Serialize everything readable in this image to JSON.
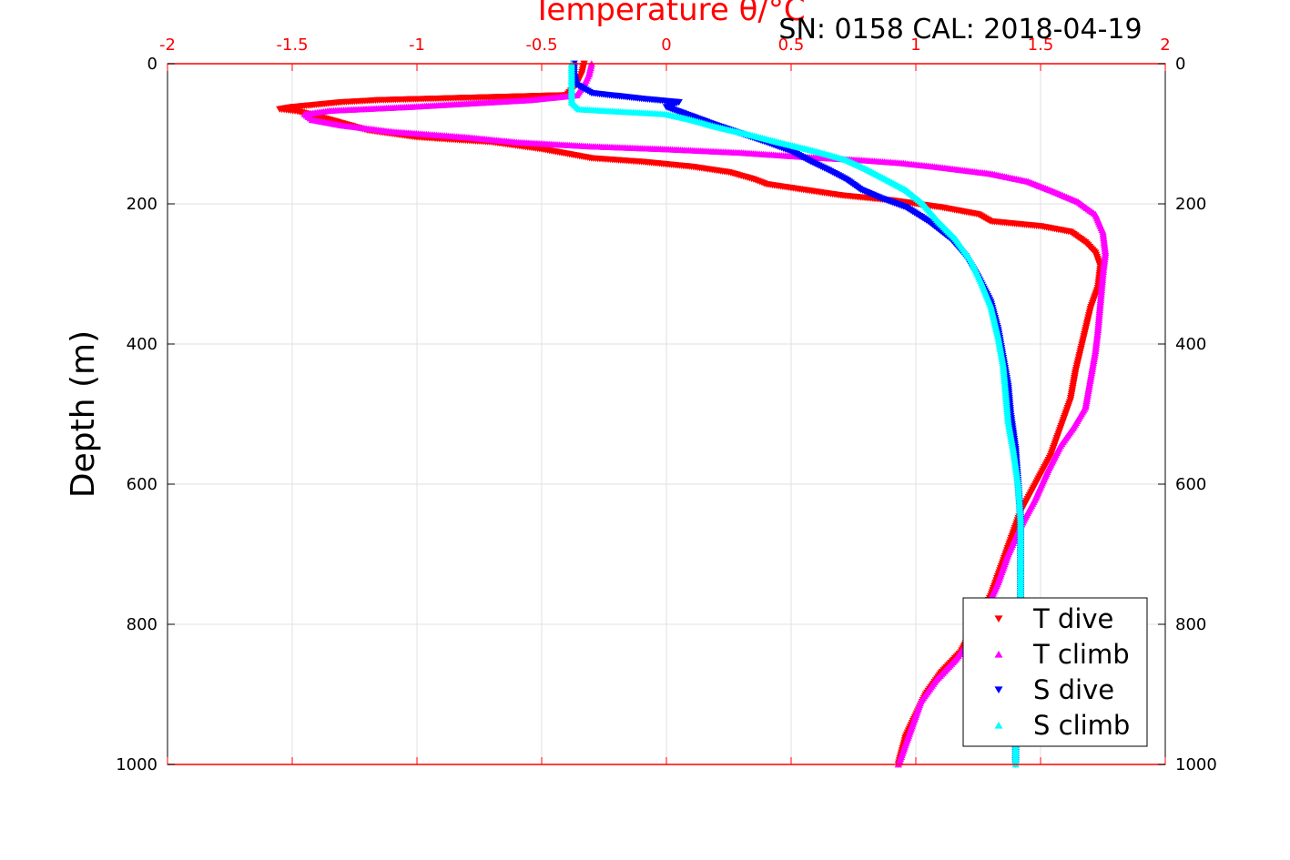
{
  "colors": {
    "t_dive": "#ff0000",
    "t_climb": "#ff00ff",
    "s_dive": "#0000ff",
    "s_climb": "#00ffff",
    "top_axis": "#ff0000",
    "grid": "#e0e0e0"
  },
  "chart_data": {
    "type": "scatter",
    "title": "Temperature θ/°C",
    "subtitle": "SN: 0158  CAL: 2018-04-19",
    "xlabel": "Temperature θ/°C",
    "ylabel": "Depth (m)",
    "xlim": [
      -2,
      2
    ],
    "ylim": [
      0,
      1000
    ],
    "y_reversed": true,
    "grid": true,
    "x_ticks": [
      -2,
      -1.5,
      -1,
      -0.5,
      0,
      0.5,
      1,
      1.5,
      2
    ],
    "x_tick_labels": [
      "-2",
      "-1.5",
      "-1",
      "-0.5",
      "0",
      "0.5",
      "1",
      "1.5",
      "2"
    ],
    "y_ticks": [
      0,
      200,
      400,
      600,
      800,
      1000
    ],
    "y_tick_labels": [
      "0",
      "200",
      "400",
      "600",
      "800",
      "1000"
    ],
    "legend_position": "bottom-right",
    "series": [
      {
        "name": "T dive",
        "marker": "triangle-down",
        "points": [
          [
            -0.33,
            0
          ],
          [
            -0.34,
            15
          ],
          [
            -0.36,
            30
          ],
          [
            -0.4,
            45
          ],
          [
            -1.15,
            52
          ],
          [
            -1.3,
            55
          ],
          [
            -1.5,
            62
          ],
          [
            -1.55,
            65
          ],
          [
            -1.48,
            68
          ],
          [
            -1.4,
            75
          ],
          [
            -1.3,
            85
          ],
          [
            -1.2,
            95
          ],
          [
            -1.0,
            105
          ],
          [
            -0.7,
            112
          ],
          [
            -0.5,
            122
          ],
          [
            -0.3,
            135
          ],
          [
            -0.1,
            140
          ],
          [
            0.1,
            147
          ],
          [
            0.25,
            155
          ],
          [
            0.35,
            165
          ],
          [
            0.4,
            172
          ],
          [
            0.55,
            180
          ],
          [
            0.7,
            188
          ],
          [
            0.9,
            195
          ],
          [
            1.1,
            205
          ],
          [
            1.25,
            215
          ],
          [
            1.3,
            225
          ],
          [
            1.5,
            232
          ],
          [
            1.62,
            240
          ],
          [
            1.68,
            255
          ],
          [
            1.72,
            270
          ],
          [
            1.74,
            290
          ],
          [
            1.73,
            320
          ],
          [
            1.7,
            350
          ],
          [
            1.68,
            380
          ],
          [
            1.66,
            410
          ],
          [
            1.64,
            440
          ],
          [
            1.62,
            480
          ],
          [
            1.58,
            520
          ],
          [
            1.54,
            560
          ],
          [
            1.48,
            600
          ],
          [
            1.42,
            640
          ],
          [
            1.38,
            680
          ],
          [
            1.34,
            720
          ],
          [
            1.3,
            760
          ],
          [
            1.24,
            800
          ],
          [
            1.18,
            840
          ],
          [
            1.1,
            870
          ],
          [
            1.04,
            900
          ],
          [
            1.0,
            930
          ],
          [
            0.96,
            960
          ],
          [
            0.93,
            1000
          ]
        ]
      },
      {
        "name": "T climb",
        "marker": "triangle-up",
        "points": [
          [
            -0.3,
            0
          ],
          [
            -0.31,
            15
          ],
          [
            -0.33,
            30
          ],
          [
            -0.36,
            45
          ],
          [
            -0.55,
            52
          ],
          [
            -0.8,
            57
          ],
          [
            -1.05,
            62
          ],
          [
            -1.35,
            67
          ],
          [
            -1.45,
            72
          ],
          [
            -1.42,
            80
          ],
          [
            -1.3,
            88
          ],
          [
            -1.1,
            97
          ],
          [
            -0.8,
            105
          ],
          [
            -0.6,
            112
          ],
          [
            -0.3,
            118
          ],
          [
            0.0,
            122
          ],
          [
            0.3,
            127
          ],
          [
            0.55,
            133
          ],
          [
            0.8,
            138
          ],
          [
            0.95,
            142
          ],
          [
            1.1,
            148
          ],
          [
            1.3,
            157
          ],
          [
            1.45,
            168
          ],
          [
            1.55,
            182
          ],
          [
            1.65,
            197
          ],
          [
            1.72,
            215
          ],
          [
            1.75,
            240
          ],
          [
            1.76,
            270
          ],
          [
            1.75,
            300
          ],
          [
            1.74,
            340
          ],
          [
            1.73,
            380
          ],
          [
            1.72,
            410
          ],
          [
            1.7,
            450
          ],
          [
            1.68,
            490
          ],
          [
            1.63,
            520
          ],
          [
            1.58,
            545
          ],
          [
            1.53,
            580
          ],
          [
            1.48,
            620
          ],
          [
            1.42,
            660
          ],
          [
            1.37,
            700
          ],
          [
            1.33,
            740
          ],
          [
            1.28,
            780
          ],
          [
            1.22,
            820
          ],
          [
            1.16,
            850
          ],
          [
            1.08,
            880
          ],
          [
            1.02,
            910
          ],
          [
            0.99,
            940
          ],
          [
            0.96,
            970
          ],
          [
            0.93,
            1000
          ]
        ]
      },
      {
        "name": "S dive",
        "marker": "triangle-down",
        "points": [
          [
            -0.37,
            0
          ],
          [
            -0.37,
            15
          ],
          [
            -0.36,
            30
          ],
          [
            -0.3,
            42
          ],
          [
            -0.1,
            50
          ],
          [
            0.05,
            55
          ],
          [
            0.0,
            62
          ],
          [
            0.1,
            75
          ],
          [
            0.2,
            88
          ],
          [
            0.3,
            100
          ],
          [
            0.4,
            112
          ],
          [
            0.5,
            125
          ],
          [
            0.58,
            140
          ],
          [
            0.65,
            152
          ],
          [
            0.72,
            165
          ],
          [
            0.78,
            180
          ],
          [
            0.86,
            192
          ],
          [
            0.96,
            205
          ],
          [
            1.05,
            225
          ],
          [
            1.14,
            250
          ],
          [
            1.2,
            275
          ],
          [
            1.25,
            305
          ],
          [
            1.3,
            340
          ],
          [
            1.33,
            380
          ],
          [
            1.35,
            420
          ],
          [
            1.37,
            460
          ],
          [
            1.38,
            500
          ],
          [
            1.4,
            550
          ],
          [
            1.41,
            600
          ],
          [
            1.42,
            650
          ],
          [
            1.42,
            700
          ],
          [
            1.42,
            750
          ],
          [
            1.42,
            800
          ],
          [
            1.41,
            850
          ],
          [
            1.41,
            900
          ],
          [
            1.4,
            950
          ],
          [
            1.4,
            1000
          ]
        ]
      },
      {
        "name": "S climb",
        "marker": "triangle-up",
        "points": [
          [
            -0.38,
            0
          ],
          [
            -0.38,
            15
          ],
          [
            -0.38,
            30
          ],
          [
            -0.38,
            45
          ],
          [
            -0.38,
            55
          ],
          [
            -0.35,
            65
          ],
          [
            -0.2,
            68
          ],
          [
            0.0,
            72
          ],
          [
            0.1,
            80
          ],
          [
            0.2,
            90
          ],
          [
            0.32,
            100
          ],
          [
            0.45,
            112
          ],
          [
            0.6,
            125
          ],
          [
            0.72,
            137
          ],
          [
            0.8,
            150
          ],
          [
            0.88,
            165
          ],
          [
            0.96,
            180
          ],
          [
            1.03,
            200
          ],
          [
            1.09,
            225
          ],
          [
            1.16,
            250
          ],
          [
            1.22,
            280
          ],
          [
            1.26,
            310
          ],
          [
            1.3,
            345
          ],
          [
            1.33,
            390
          ],
          [
            1.35,
            430
          ],
          [
            1.36,
            470
          ],
          [
            1.37,
            510
          ],
          [
            1.39,
            550
          ],
          [
            1.41,
            600
          ],
          [
            1.42,
            650
          ],
          [
            1.42,
            700
          ],
          [
            1.42,
            750
          ],
          [
            1.42,
            800
          ],
          [
            1.41,
            850
          ],
          [
            1.41,
            900
          ],
          [
            1.4,
            950
          ],
          [
            1.4,
            1000
          ]
        ]
      }
    ]
  }
}
